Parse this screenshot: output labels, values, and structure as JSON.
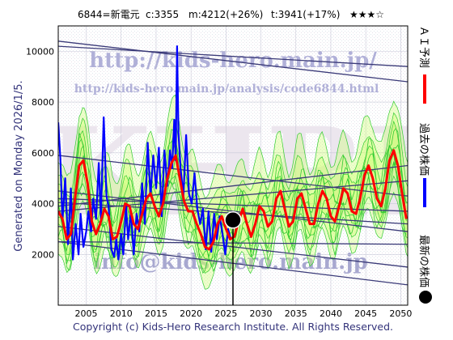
{
  "header": {
    "code_name": "6844=新電元",
    "current": "c:3355",
    "mid": "m:4212(+26%)",
    "target": "t:3941(+17%)",
    "rating": "★★★☆"
  },
  "generated_label": "Generated on Monday 2026/1/5.",
  "copyright": "Copyright (c) Kids-Hero Research Institute. All Rights Reserved.",
  "watermark": {
    "url": "http://kids-hero.main.jp/",
    "analysis_url": "http://kids-hero.main.jp/analysis/code6844.html",
    "email": "info@kids-hero.main.jp",
    "big": "KHRI"
  },
  "legend": {
    "forecast": "ＡＩ予測",
    "past": "過去の株価",
    "latest": "最新の株価"
  },
  "colors": {
    "forecast": "#ff0000",
    "past": "#0000ff",
    "latest": "#000000",
    "trend": "#3a3a78",
    "band_fill": "#ccff66",
    "band_line": "#33cc33",
    "wm_url": "#b0b0d8",
    "wm_email": "#a8a8d0"
  },
  "chart_data": {
    "type": "line",
    "xlim": [
      2001,
      2051
    ],
    "ylim": [
      0,
      11000
    ],
    "x_ticks": [
      2005,
      2010,
      2015,
      2020,
      2025,
      2030,
      2035,
      2040,
      2045,
      2050
    ],
    "y_ticks": [
      2000,
      4000,
      6000,
      8000,
      10000
    ],
    "latest_point": {
      "x": 2026.0,
      "y": 3355
    },
    "series": [
      {
        "id": "past",
        "x": [
          2001.0,
          2001.3,
          2001.6,
          2002.0,
          2002.4,
          2002.8,
          2003.1,
          2003.5,
          2003.9,
          2004.2,
          2004.6,
          2005.0,
          2005.3,
          2005.7,
          2006.0,
          2006.4,
          2006.8,
          2007.1,
          2007.5,
          2007.9,
          2008.2,
          2008.6,
          2009.0,
          2009.3,
          2009.6,
          2010.0,
          2010.3,
          2010.7,
          2011.0,
          2011.4,
          2011.8,
          2012.2,
          2012.6,
          2013.0,
          2013.4,
          2013.8,
          2014.2,
          2014.6,
          2015.0,
          2015.4,
          2015.8,
          2016.2,
          2016.6,
          2017.0,
          2017.3,
          2017.6,
          2017.8,
          2018.0,
          2018.2,
          2018.5,
          2018.9,
          2019.3,
          2019.7,
          2020.1,
          2020.5,
          2020.9,
          2021.3,
          2021.7,
          2022.1,
          2022.5,
          2022.9,
          2023.3,
          2023.7,
          2024.1,
          2024.5,
          2024.9,
          2025.3,
          2025.7
        ],
        "y": [
          7200,
          5800,
          3300,
          5000,
          2400,
          4600,
          1800,
          3200,
          2000,
          3600,
          2300,
          2900,
          3700,
          2900,
          4200,
          3400,
          5600,
          3400,
          7400,
          4300,
          3900,
          2200,
          1900,
          2600,
          1800,
          2800,
          2000,
          3900,
          2600,
          3700,
          2000,
          3600,
          2900,
          4800,
          3200,
          6400,
          4300,
          5900,
          4600,
          6200,
          3500,
          6100,
          4700,
          6100,
          5400,
          7300,
          5700,
          10200,
          6800,
          5400,
          4300,
          6700,
          4400,
          4000,
          5200,
          3800,
          3200,
          3800,
          2200,
          3700,
          2100,
          3600,
          2600,
          3500,
          2800,
          2000,
          3000,
          2600
        ]
      },
      {
        "id": "forecast",
        "x": [
          2001.0,
          2001.6,
          2002.2,
          2002.8,
          2003.4,
          2004.0,
          2004.6,
          2005.2,
          2005.8,
          2006.4,
          2007.0,
          2007.6,
          2008.2,
          2008.8,
          2009.4,
          2010.0,
          2010.6,
          2011.2,
          2011.8,
          2012.4,
          2013.0,
          2013.6,
          2014.2,
          2014.8,
          2015.4,
          2016.0,
          2016.6,
          2017.2,
          2017.8,
          2018.4,
          2019.0,
          2019.6,
          2020.2,
          2020.8,
          2021.4,
          2022.0,
          2022.6,
          2023.2,
          2023.8,
          2024.4,
          2025.0,
          2025.6,
          2026.2,
          2026.8,
          2027.4,
          2028.0,
          2028.6,
          2029.2,
          2029.8,
          2030.4,
          2031.0,
          2031.6,
          2032.2,
          2032.8,
          2033.4,
          2034.0,
          2034.6,
          2035.2,
          2035.8,
          2036.4,
          2037.0,
          2037.6,
          2038.2,
          2038.8,
          2039.4,
          2040.0,
          2040.6,
          2041.2,
          2041.8,
          2042.4,
          2043.0,
          2043.6,
          2044.2,
          2044.8,
          2045.4,
          2046.0,
          2046.6,
          2047.2,
          2047.8,
          2048.4,
          2049.0,
          2049.6,
          2050.2,
          2050.8
        ],
        "y": [
          3700,
          3400,
          2600,
          2800,
          4200,
          5500,
          5700,
          4800,
          3300,
          2800,
          3200,
          3800,
          3500,
          2600,
          2700,
          3300,
          4000,
          3900,
          3200,
          3000,
          3600,
          4200,
          4400,
          3900,
          3500,
          4000,
          5000,
          5600,
          5900,
          5000,
          4100,
          3700,
          3700,
          3200,
          2800,
          2300,
          2200,
          2500,
          3200,
          3500,
          3000,
          2600,
          2700,
          3300,
          3800,
          3200,
          2700,
          3200,
          3900,
          3700,
          3100,
          3300,
          4200,
          4500,
          3800,
          3100,
          3300,
          4200,
          4400,
          3800,
          3200,
          3200,
          4000,
          4500,
          4200,
          3500,
          3300,
          3900,
          4600,
          4400,
          3700,
          3600,
          4200,
          5100,
          5500,
          5000,
          4200,
          3900,
          4600,
          5700,
          6100,
          5500,
          4400,
          3400
        ]
      }
    ],
    "trend_lines": [
      {
        "x": [
          2001,
          2051
        ],
        "y": [
          10400,
          8800
        ]
      },
      {
        "x": [
          2001,
          2051
        ],
        "y": [
          10200,
          9400
        ]
      },
      {
        "x": [
          2001,
          2051
        ],
        "y": [
          5900,
          4300
        ]
      },
      {
        "x": [
          2001,
          2051
        ],
        "y": [
          4500,
          2900
        ]
      },
      {
        "x": [
          2001,
          2051
        ],
        "y": [
          4200,
          3700
        ]
      },
      {
        "x": [
          2001,
          2051
        ],
        "y": [
          4050,
          3200
        ]
      },
      {
        "x": [
          2001,
          2051
        ],
        "y": [
          2500,
          2400
        ]
      },
      {
        "x": [
          2001,
          2051
        ],
        "y": [
          3100,
          1500
        ]
      },
      {
        "x": [
          2001,
          2051
        ],
        "y": [
          2500,
          800
        ]
      },
      {
        "x": [
          2001,
          2051
        ],
        "y": [
          3900,
          5500
        ]
      },
      {
        "x": [
          2001,
          2051
        ],
        "y": [
          3700,
          4900
        ]
      }
    ]
  }
}
